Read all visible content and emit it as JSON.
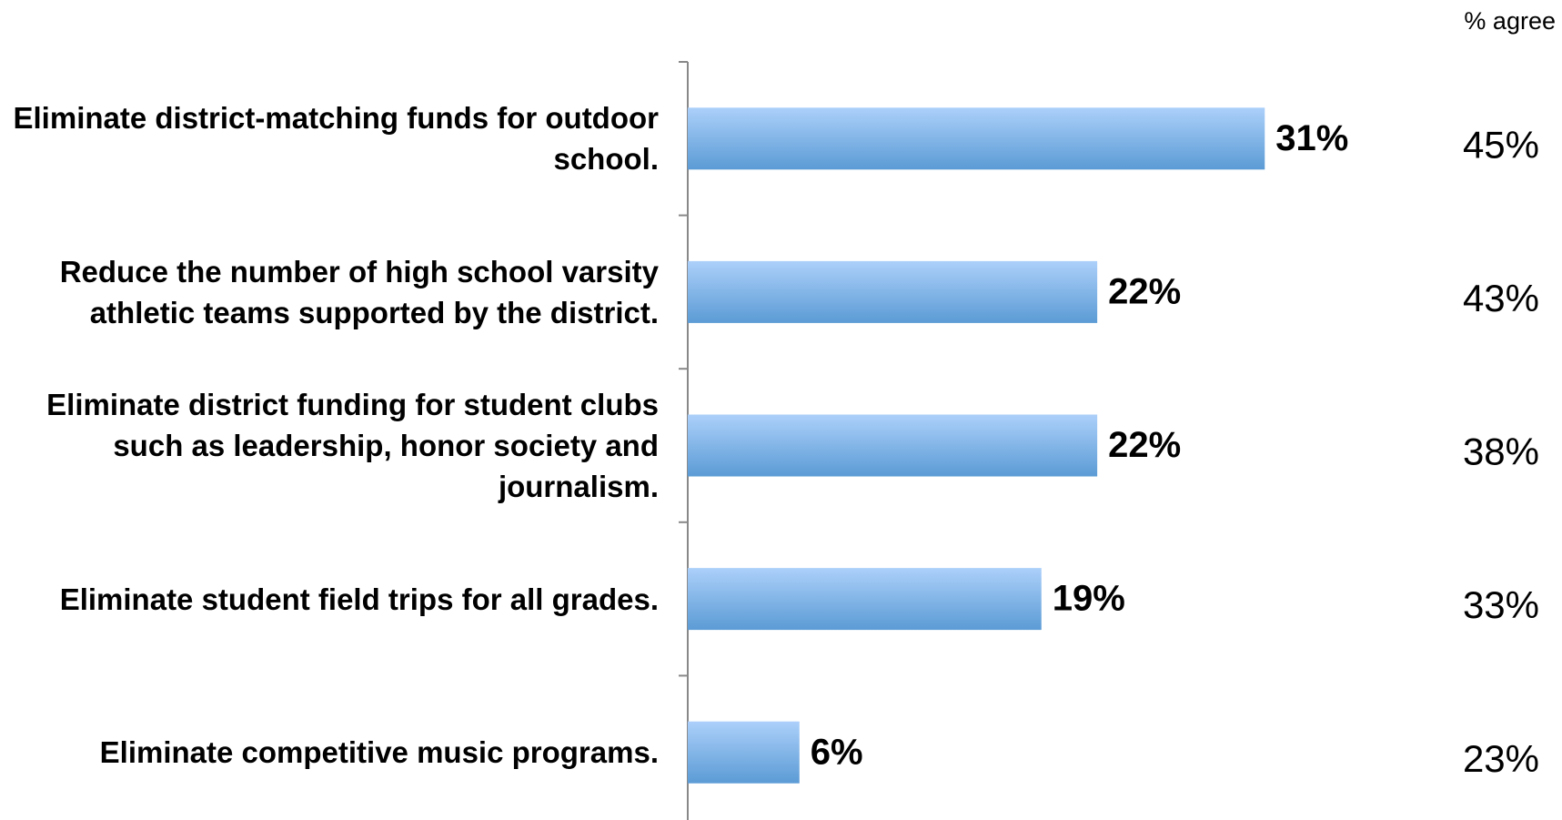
{
  "chart_data": {
    "type": "bar",
    "orientation": "horizontal",
    "categories": [
      "Eliminate district-matching funds for outdoor school.",
      "Reduce the number of high school varsity athletic teams supported by the district.",
      "Eliminate district funding for student clubs such as leadership, honor society and journalism.",
      "Eliminate student field trips for all grades.",
      "Eliminate competitive music programs."
    ],
    "values": [
      31,
      22,
      22,
      19,
      6
    ],
    "value_labels": [
      "31%",
      "22%",
      "22%",
      "19%",
      "6%"
    ],
    "color": "#5b9bd5",
    "xlim": [
      0,
      50
    ],
    "agree": {
      "label": "% agree",
      "values": [
        45,
        43,
        38,
        33,
        23
      ],
      "value_labels": [
        "45%",
        "43%",
        "38%",
        "33%",
        "23%"
      ]
    }
  }
}
